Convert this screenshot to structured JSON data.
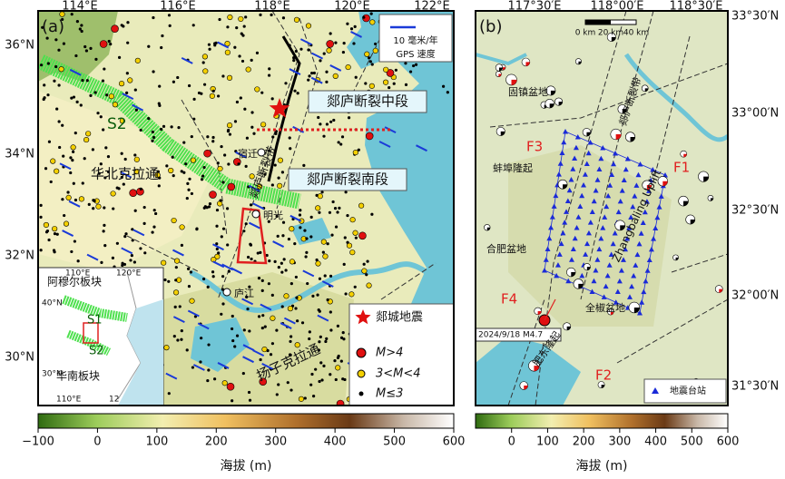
{
  "panel_a": {
    "label": "(a)",
    "lon_labels": [
      "114°E",
      "116°E",
      "118°E",
      "120°E",
      "122°E"
    ],
    "lat_labels": [
      "36°N",
      "34°N",
      "32°N",
      "30°N"
    ],
    "texts": {
      "s2": "S2",
      "north_china": "华北克拉通",
      "tanlu_mid": "郯庐断裂中段",
      "tanlu_south": "郯庐断裂南段",
      "fault_zone": "郯庐断裂带",
      "suqian": "宿迁",
      "mingguang": "明光",
      "lujiang": "庐江",
      "yangtze": "扬子克拉通"
    },
    "gps_legend": {
      "rate": "10 毫米/年",
      "title": "GPS 速度"
    },
    "legend": [
      "郯城地震",
      "M>4",
      "3<M<4",
      "M≤3"
    ],
    "inset": {
      "lon_top": [
        "110°E",
        "120°E"
      ],
      "lat": [
        "40°N",
        "30°N"
      ],
      "lon_bottom": [
        "110°E",
        "12"
      ],
      "amur": "阿穆尔板块",
      "s1": "S1",
      "s2": "S2",
      "south_china": "华南板块"
    }
  },
  "panel_b": {
    "label": "(b)",
    "lon_labels": [
      "117°30′E",
      "118°00′E",
      "118°30′E"
    ],
    "lat_labels": [
      "33°30′N",
      "33°00′N",
      "32°30′N",
      "32°00′N",
      "31°30′N"
    ],
    "scale_bar": [
      "0 km",
      "20 km",
      "40 km"
    ],
    "texts": {
      "guzhen": "固镇盆地",
      "fault_zone": "郯庐断裂带",
      "f3": "F3",
      "f1": "F1",
      "bengbu": "蚌埠隆起",
      "zhangbaling": "Zhangbaling Uplift",
      "hefei": "合肥盆地",
      "f4": "F4",
      "quanjiao": "全椒盆地",
      "event": "2024/9/18 M4.7",
      "feidong": "肥东隆起",
      "f2": "F2"
    },
    "legend": "地震台站"
  },
  "colorbar_a": {
    "range": [
      -100,
      600
    ],
    "ticks": [
      {
        "value": -100,
        "label": "−100"
      },
      0,
      100,
      200,
      300,
      400,
      500,
      600
    ],
    "label": "海拔 (m)"
  },
  "colorbar_b": {
    "range": [
      -100,
      600
    ],
    "ticks": [
      0,
      100,
      200,
      300,
      400,
      500,
      600
    ],
    "label": "海拔 (m)"
  }
}
